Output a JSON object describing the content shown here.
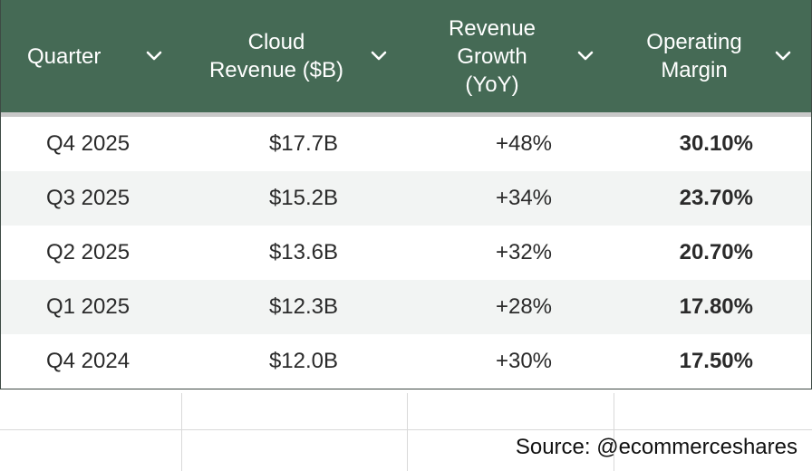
{
  "table": {
    "headers": [
      "Quarter",
      "Cloud Revenue ($B)",
      "Revenue Growth (YoY)",
      "Operating Margin"
    ],
    "header_icon": "chevron-down-icon",
    "rows": [
      {
        "quarter": "Q4 2025",
        "revenue": "$17.7B",
        "growth": "+48%",
        "margin": "30.10%"
      },
      {
        "quarter": "Q3 2025",
        "revenue": "$15.2B",
        "growth": "+34%",
        "margin": "23.70%"
      },
      {
        "quarter": "Q2 2025",
        "revenue": "$13.6B",
        "growth": "+32%",
        "margin": "20.70%"
      },
      {
        "quarter": "Q1 2025",
        "revenue": "$12.3B",
        "growth": "+28%",
        "margin": "17.80%"
      },
      {
        "quarter": "Q4 2024",
        "revenue": "$12.0B",
        "growth": "+30%",
        "margin": "17.50%"
      }
    ]
  },
  "source": "Source: @ecommerceshares",
  "colors": {
    "header_bg": "#456a55",
    "header_text": "#ffffff",
    "alt_row_bg": "#f2f4f3"
  }
}
